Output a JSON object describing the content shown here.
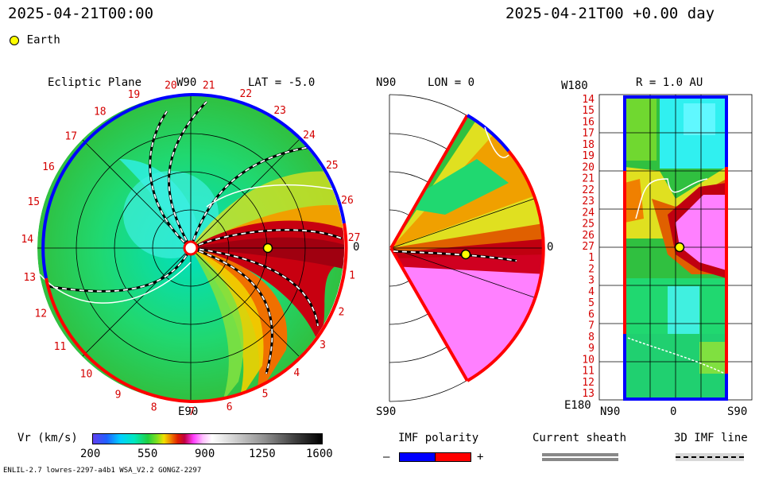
{
  "header": {
    "left_datetime": "2025-04-21T00:00",
    "right_datetime": "2025-04-21T00 +0.00 day"
  },
  "legend": {
    "earth_label": "Earth"
  },
  "panels": {
    "ecliptic": {
      "title": "Ecliptic Plane",
      "top_label": "W90",
      "lat_label": "LAT = -5.0",
      "right_label": "0",
      "bottom_label": "E90",
      "ring_numbers": [
        "20",
        "21",
        "22",
        "23",
        "24",
        "25",
        "26",
        "27",
        "1",
        "2",
        "3",
        "4",
        "5",
        "6",
        "7",
        "8",
        "9",
        "10",
        "11",
        "12",
        "13",
        "14",
        "15",
        "16",
        "17",
        "18",
        "19"
      ]
    },
    "meridional": {
      "top_label": "N90",
      "lon_label": "LON = 0",
      "right_label": "0",
      "bottom_label": "S90"
    },
    "synoptic": {
      "top_left_label": "W180",
      "r_label": "R = 1.0 AU",
      "bottom_left_label": "E180",
      "x_left": "N90",
      "x_mid": "0",
      "x_right": "S90",
      "y_ticks": [
        "14",
        "15",
        "16",
        "17",
        "18",
        "19",
        "20",
        "21",
        "22",
        "23",
        "24",
        "25",
        "26",
        "27",
        "1",
        "2",
        "3",
        "4",
        "5",
        "6",
        "7",
        "8",
        "9",
        "10",
        "11",
        "12",
        "13"
      ]
    }
  },
  "bottom": {
    "vr_label": "Vr (km/s)",
    "vr_ticks": [
      "200",
      "550",
      "900",
      "1250",
      "1600"
    ],
    "imf_label": "IMF polarity",
    "imf_minus": "–",
    "imf_plus": "+",
    "sheath_label": "Current sheath",
    "imf3d_label": "3D IMF line",
    "footer_left": "ENLIL-2.7 lowres-2297-a4b1 WSA_V2.2 GONGZ-2297"
  },
  "colors": {
    "positive": "#ff0000",
    "negative": "#0000ff",
    "earth": "#ffff00"
  },
  "chart_data": {
    "type": "heatmap",
    "quantity": "Vr (km/s)",
    "colorbar_range": [
      200,
      1600
    ],
    "colorbar_ticks": [
      200,
      550,
      900,
      1250,
      1600
    ],
    "panels": [
      "Ecliptic Plane",
      "LON = 0",
      "R = 1.0 AU"
    ]
  }
}
